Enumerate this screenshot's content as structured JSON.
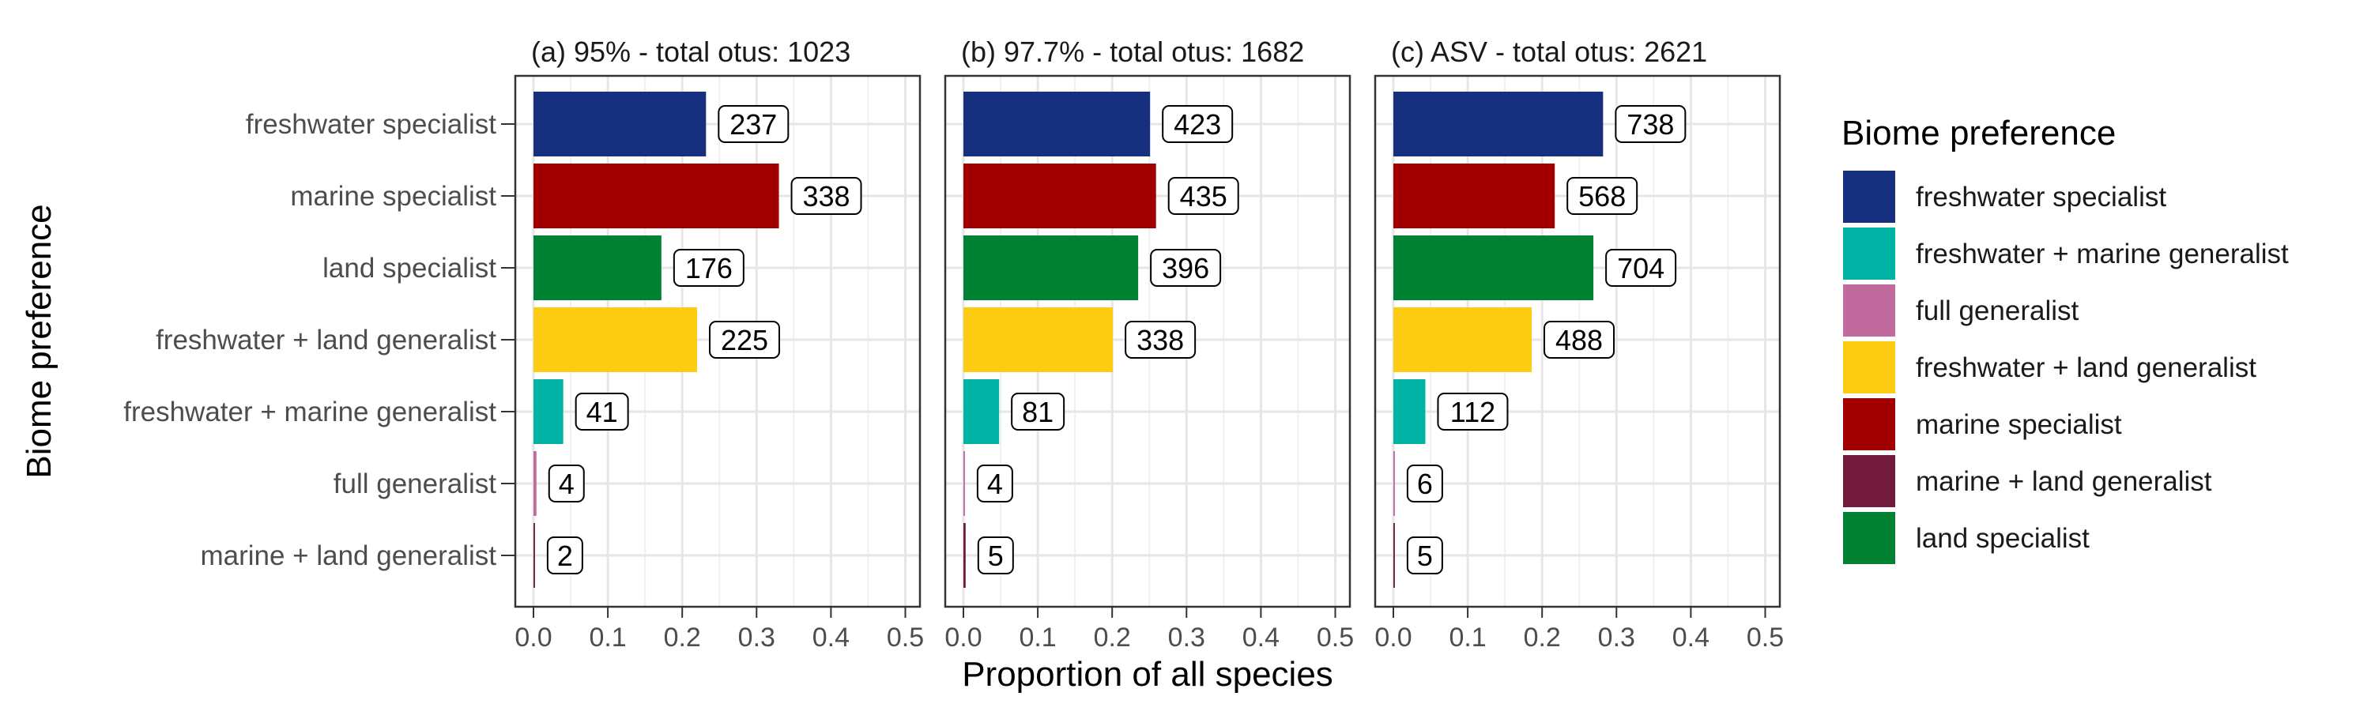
{
  "chart_data": {
    "type": "bar",
    "orientation": "horizontal",
    "ylabel": "Biome preference",
    "xlabel": "Proportion of all species",
    "xlim": [
      0,
      0.5
    ],
    "xticks": [
      "0.0",
      "0.1",
      "0.2",
      "0.3",
      "0.4",
      "0.5"
    ],
    "grid": true,
    "legend_position": "right",
    "legend": {
      "title": "Biome preference",
      "items": [
        {
          "label": "freshwater specialist",
          "color": "#172f7f"
        },
        {
          "label": "freshwater + marine generalist",
          "color": "#00b3a4"
        },
        {
          "label": "full generalist",
          "color": "#c06a9e"
        },
        {
          "label": "freshwater + land generalist",
          "color": "#fecb13"
        },
        {
          "label": "marine specialist",
          "color": "#a20000"
        },
        {
          "label": "marine + land generalist",
          "color": "#721a3c"
        },
        {
          "label": "land specialist",
          "color": "#008232"
        }
      ]
    },
    "categories": [
      "freshwater specialist",
      "marine specialist",
      "land specialist",
      "freshwater + land generalist",
      "freshwater + marine generalist",
      "full generalist",
      "marine + land generalist"
    ],
    "panels": [
      {
        "title": "(a) 95% - total otus: 1023",
        "counts": [
          237,
          338,
          176,
          225,
          41,
          4,
          2
        ],
        "values": [
          0.232,
          0.33,
          0.172,
          0.22,
          0.04,
          0.004,
          0.002
        ]
      },
      {
        "title": "(b) 97.7% - total otus: 1682",
        "counts": [
          423,
          435,
          396,
          338,
          81,
          4,
          5
        ],
        "values": [
          0.251,
          0.259,
          0.235,
          0.201,
          0.048,
          0.002,
          0.003
        ]
      },
      {
        "title": "(c) ASV - total otus: 2621",
        "counts": [
          738,
          568,
          704,
          488,
          112,
          6,
          5
        ],
        "values": [
          0.282,
          0.217,
          0.269,
          0.186,
          0.043,
          0.002,
          0.002
        ]
      }
    ]
  }
}
